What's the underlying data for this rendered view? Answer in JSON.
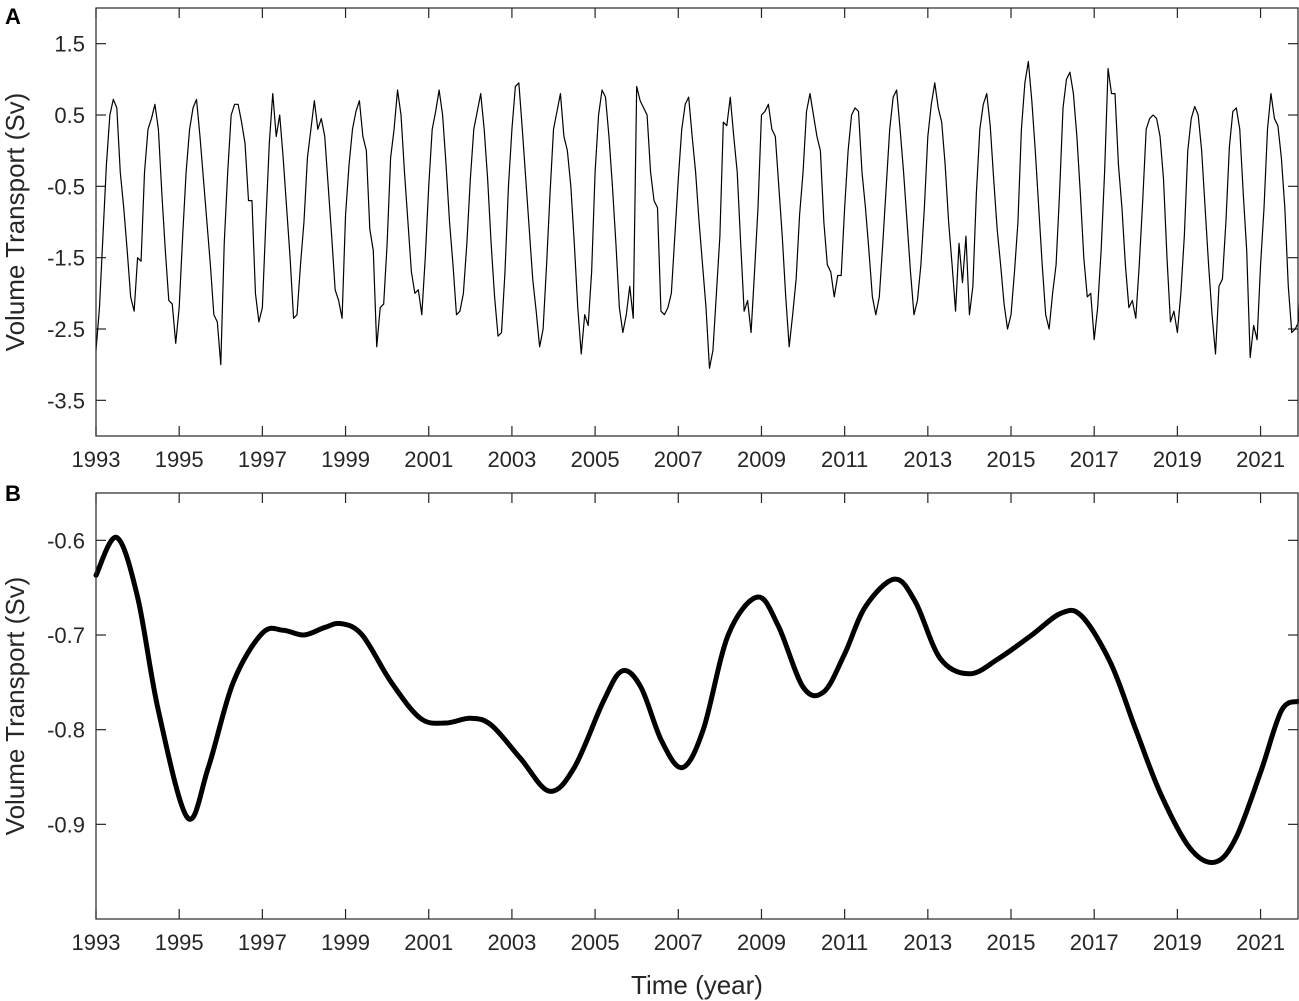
{
  "chart_data": [
    {
      "panel_label": "A",
      "type": "line",
      "ylabel": "Volume Transport (Sv)",
      "xlabel": "",
      "xlim": [
        1993.0,
        2021.9
      ],
      "ylim": [
        -4.0,
        2.0
      ],
      "xticks": [
        1993,
        1995,
        1997,
        1999,
        2001,
        2003,
        2005,
        2007,
        2009,
        2011,
        2013,
        2015,
        2017,
        2019,
        2021
      ],
      "xtick_labels": [
        "1993",
        "1995",
        "1997",
        "1999",
        "2001",
        "2003",
        "2005",
        "2007",
        "2009",
        "2011",
        "2013",
        "2015",
        "2017",
        "2019",
        "2021"
      ],
      "yticks": [
        1.5,
        0.5,
        -0.5,
        -1.5,
        -2.5,
        -3.5
      ],
      "ytick_labels": [
        "1.5",
        "0.5",
        "-0.5",
        "-1.5",
        "-2.5",
        "-3.5"
      ],
      "grid": false,
      "line_color": "#000000",
      "series": [
        {
          "x_start": 1993.0,
          "x_step_years": 0.0833333,
          "values": [
            -2.8,
            -2.2,
            -1.2,
            -0.2,
            0.5,
            0.72,
            0.6,
            -0.3,
            -0.8,
            -1.4,
            -2.05,
            -2.25,
            -1.5,
            -1.55,
            -0.3,
            0.3,
            0.45,
            0.65,
            0.3,
            -0.6,
            -1.4,
            -2.1,
            -2.15,
            -2.7,
            -2.2,
            -1.2,
            -0.3,
            0.3,
            0.6,
            0.72,
            0.2,
            -0.4,
            -1.0,
            -1.6,
            -2.3,
            -2.4,
            -3.0,
            -1.3,
            -0.3,
            0.5,
            0.65,
            0.65,
            0.4,
            0.1,
            -0.7,
            -0.7,
            -2.0,
            -2.4,
            -2.2,
            -1.0,
            0.1,
            0.8,
            0.2,
            0.5,
            -0.1,
            -0.8,
            -1.5,
            -2.35,
            -2.3,
            -1.6,
            -1.0,
            -0.1,
            0.3,
            0.7,
            0.3,
            0.45,
            0.2,
            -0.5,
            -1.2,
            -1.95,
            -2.1,
            -2.35,
            -0.9,
            -0.2,
            0.3,
            0.55,
            0.7,
            0.2,
            0.0,
            -1.1,
            -1.4,
            -2.75,
            -2.2,
            -2.15,
            -1.3,
            -0.1,
            0.3,
            0.85,
            0.5,
            -0.3,
            -1.0,
            -1.7,
            -2.0,
            -1.95,
            -2.3,
            -1.5,
            -0.5,
            0.3,
            0.55,
            0.85,
            0.5,
            -0.2,
            -1.0,
            -1.6,
            -2.3,
            -2.25,
            -2.0,
            -1.3,
            -0.4,
            0.3,
            0.55,
            0.8,
            0.3,
            -0.4,
            -1.3,
            -2.05,
            -2.6,
            -2.55,
            -1.7,
            -0.5,
            0.3,
            0.9,
            0.95,
            0.3,
            -0.4,
            -1.1,
            -1.8,
            -2.25,
            -2.75,
            -2.5,
            -1.6,
            -0.6,
            0.3,
            0.55,
            0.8,
            0.2,
            0.0,
            -0.5,
            -1.3,
            -2.2,
            -2.85,
            -2.3,
            -2.45,
            -1.7,
            -0.3,
            0.5,
            0.85,
            0.75,
            0.2,
            -0.5,
            -1.3,
            -2.2,
            -2.55,
            -2.3,
            -1.9,
            -2.35,
            0.9,
            0.7,
            0.6,
            0.5,
            -0.3,
            -0.7,
            -0.8,
            -2.25,
            -2.3,
            -2.2,
            -2.0,
            -1.2,
            -0.4,
            0.3,
            0.65,
            0.75,
            0.2,
            -0.3,
            -1.0,
            -1.6,
            -2.2,
            -3.05,
            -2.8,
            -2.0,
            -1.2,
            0.4,
            0.35,
            0.75,
            0.2,
            -0.3,
            -1.3,
            -2.25,
            -2.1,
            -2.55,
            -1.7,
            -0.8,
            0.5,
            0.55,
            0.65,
            0.3,
            0.2,
            -0.5,
            -1.2,
            -2.05,
            -2.75,
            -2.3,
            -1.8,
            -0.9,
            -0.3,
            0.55,
            0.8,
            0.5,
            0.2,
            0.0,
            -1.0,
            -1.6,
            -1.7,
            -2.05,
            -1.75,
            -1.75,
            -0.8,
            0.0,
            0.5,
            0.6,
            0.55,
            -0.3,
            -0.8,
            -1.4,
            -2.05,
            -2.3,
            -2.05,
            -1.3,
            -0.5,
            0.3,
            0.75,
            0.85,
            0.3,
            -0.3,
            -1.0,
            -1.7,
            -2.3,
            -2.1,
            -1.6,
            -0.8,
            0.2,
            0.65,
            0.95,
            0.6,
            0.4,
            -0.2,
            -1.0,
            -1.6,
            -2.25,
            -1.3,
            -1.85,
            -1.2,
            -2.3,
            -1.9,
            -0.6,
            0.3,
            0.65,
            0.8,
            0.35,
            -0.4,
            -1.1,
            -1.6,
            -2.15,
            -2.5,
            -2.3,
            -1.7,
            -1.0,
            0.3,
            0.95,
            1.25,
            0.7,
            0.0,
            -0.8,
            -1.6,
            -2.3,
            -2.5,
            -2.0,
            -1.6,
            -0.6,
            0.6,
            1.0,
            1.1,
            0.8,
            0.2,
            -0.6,
            -1.5,
            -2.05,
            -2.0,
            -2.65,
            -2.2,
            -1.4,
            -0.3,
            1.15,
            0.8,
            0.8,
            -0.2,
            -0.8,
            -1.6,
            -2.2,
            -2.1,
            -2.35,
            -1.6,
            -0.7,
            0.3,
            0.45,
            0.5,
            0.45,
            0.2,
            -0.4,
            -1.5,
            -2.4,
            -2.25,
            -2.55,
            -2.0,
            -1.2,
            0.0,
            0.45,
            0.62,
            0.5,
            0.0,
            -0.8,
            -1.6,
            -2.3,
            -2.85,
            -1.9,
            -1.8,
            -1.0,
            0.05,
            0.55,
            0.6,
            0.3,
            -0.6,
            -1.4,
            -2.9,
            -2.45,
            -2.65,
            -1.6,
            -0.8,
            0.3,
            0.8,
            0.45,
            0.35,
            -0.1,
            -0.8,
            -1.9,
            -2.55,
            -2.5,
            -2.4,
            -1.3,
            -0.2,
            0.3,
            0.85,
            0.8,
            0.5,
            -0.2,
            -0.5,
            -0.9,
            -2.0
          ]
        }
      ]
    },
    {
      "panel_label": "B",
      "type": "line",
      "ylabel": "Volume Transport (Sv)",
      "xlabel": "Time (year)",
      "xlim": [
        1993.0,
        2021.9
      ],
      "ylim": [
        -1.0,
        -0.55
      ],
      "xticks": [
        1993,
        1995,
        1997,
        1999,
        2001,
        2003,
        2005,
        2007,
        2009,
        2011,
        2013,
        2015,
        2017,
        2019,
        2021
      ],
      "xtick_labels": [
        "1993",
        "1995",
        "1997",
        "1999",
        "2001",
        "2003",
        "2005",
        "2007",
        "2009",
        "2011",
        "2013",
        "2015",
        "2017",
        "2019",
        "2021"
      ],
      "yticks": [
        -0.6,
        -0.7,
        -0.8,
        -0.9
      ],
      "ytick_labels": [
        "-0.6",
        "-0.7",
        "-0.8",
        "-0.9"
      ],
      "grid": false,
      "line_color": "#000000",
      "series": [
        {
          "x": [
            1993.0,
            1993.5,
            1994.0,
            1994.5,
            1995.2,
            1995.7,
            1996.3,
            1997.0,
            1997.5,
            1998.0,
            1998.5,
            1998.9,
            1999.4,
            2000.1,
            2000.8,
            2001.4,
            2002.0,
            2002.5,
            2003.2,
            2003.9,
            2004.5,
            2005.2,
            2005.65,
            2006.1,
            2006.6,
            2007.1,
            2007.6,
            2008.2,
            2008.9,
            2009.4,
            2010.0,
            2010.5,
            2011.0,
            2011.5,
            2012.2,
            2012.7,
            2013.3,
            2014.0,
            2014.7,
            2015.5,
            2016.2,
            2016.7,
            2017.4,
            2018.0,
            2018.6,
            2019.3,
            2019.9,
            2020.4,
            2021.0,
            2021.5,
            2021.9
          ],
          "y": [
            -0.637,
            -0.597,
            -0.66,
            -0.78,
            -0.893,
            -0.84,
            -0.75,
            -0.698,
            -0.695,
            -0.7,
            -0.692,
            -0.688,
            -0.7,
            -0.75,
            -0.788,
            -0.793,
            -0.788,
            -0.795,
            -0.83,
            -0.865,
            -0.84,
            -0.77,
            -0.738,
            -0.755,
            -0.812,
            -0.84,
            -0.8,
            -0.7,
            -0.66,
            -0.69,
            -0.755,
            -0.76,
            -0.72,
            -0.67,
            -0.641,
            -0.665,
            -0.725,
            -0.741,
            -0.725,
            -0.7,
            -0.677,
            -0.68,
            -0.73,
            -0.8,
            -0.868,
            -0.925,
            -0.94,
            -0.915,
            -0.845,
            -0.78,
            -0.77
          ]
        }
      ]
    }
  ]
}
